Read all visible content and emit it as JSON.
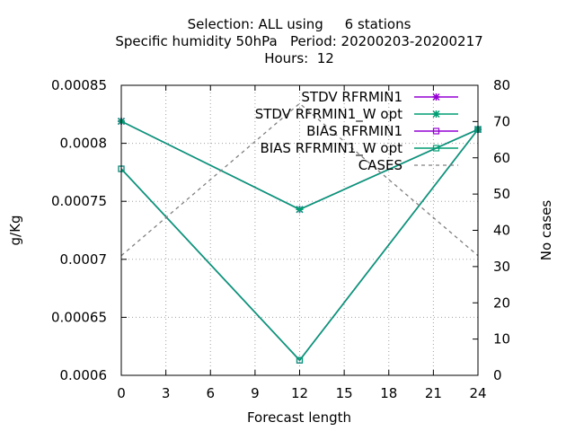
{
  "chart_data": {
    "type": "line",
    "title_lines": [
      "Selection: ALL using     6 stations",
      "Specific humidity 50hPa   Period: 20200203-20200217",
      "Hours:  12"
    ],
    "xlabel": "Forecast length",
    "ylabel": "g/Kg",
    "y2label": "No cases",
    "x_ticks": [
      0,
      3,
      6,
      9,
      12,
      15,
      18,
      21,
      24
    ],
    "y_ticks": [
      "0.0006",
      "0.00065",
      "0.0007",
      "0.00075",
      "0.0008",
      "0.00085"
    ],
    "y2_ticks": [
      0,
      10,
      20,
      30,
      40,
      50,
      60,
      70,
      80
    ],
    "xlim": [
      0,
      24
    ],
    "ylim": [
      0.0006,
      0.00085
    ],
    "y2lim": [
      0,
      80
    ],
    "grid": true,
    "legend_position": "top-right",
    "series": [
      {
        "name": "STDV RFRMIN1",
        "axis": "y",
        "color": "#9400d3",
        "marker": "star",
        "dash": false,
        "x": [
          0,
          12,
          24
        ],
        "values": [
          0.000819,
          0.000743,
          0.000812
        ]
      },
      {
        "name": "STDV RFRMIN1_W opt",
        "axis": "y",
        "color": "#009e73",
        "marker": "star",
        "dash": false,
        "x": [
          0,
          12,
          24
        ],
        "values": [
          0.000819,
          0.000743,
          0.000812
        ]
      },
      {
        "name": "BIAS RFRMIN1",
        "axis": "y",
        "color": "#9400d3",
        "marker": "square",
        "dash": false,
        "x": [
          0,
          12,
          24
        ],
        "values": [
          0.000778,
          0.000613,
          0.000812
        ]
      },
      {
        "name": "BIAS RFRMIN1_W opt",
        "axis": "y",
        "color": "#009e73",
        "marker": "square",
        "dash": false,
        "x": [
          0,
          12,
          24
        ],
        "values": [
          0.000778,
          0.000613,
          0.000812
        ]
      },
      {
        "name": "CASES",
        "axis": "y2",
        "color": "#808080",
        "marker": "none",
        "dash": true,
        "x": [
          0,
          12,
          24
        ],
        "values": [
          33,
          75,
          33
        ]
      }
    ]
  }
}
